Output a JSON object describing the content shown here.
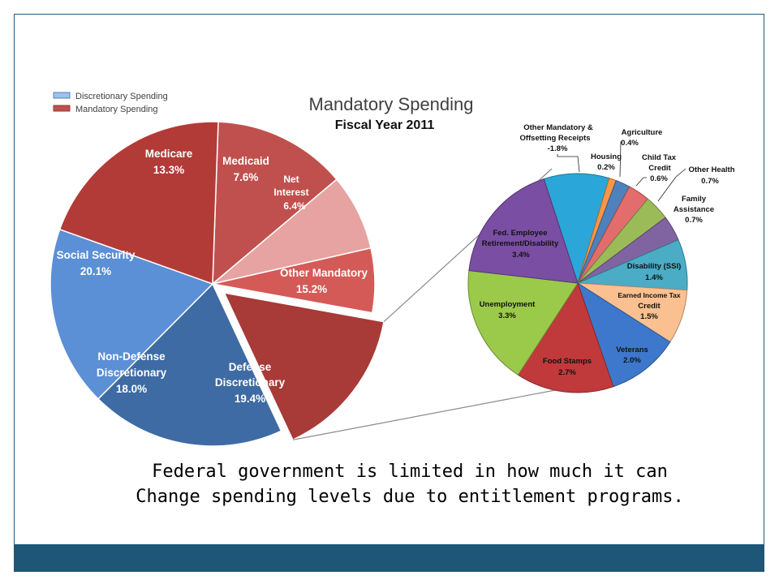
{
  "caption": {
    "line1": "Federal government is limited in how much it can",
    "line2": "Change spending levels due to entitlement programs."
  },
  "colors": {
    "frame": "#1f5a7a",
    "footer_bar": "#1d5677"
  },
  "chart_data": [
    {
      "type": "pie",
      "title": "Mandatory Spending",
      "subtitle": "Fiscal Year 2011",
      "legend_placement": "top-left",
      "legend": [
        {
          "label": "Discretionary Spending",
          "color": "#4f81bd"
        },
        {
          "label": "Mandatory Spending",
          "color": "#c0504d"
        }
      ],
      "slices": [
        {
          "key": "medicare",
          "name": "Medicare",
          "value": 13.3,
          "display": "13.3%",
          "color": "#c0504d",
          "exploded": false
        },
        {
          "key": "medicaid",
          "name": "Medicaid",
          "value": 7.6,
          "display": "7.6%",
          "color": "#e6a3a1",
          "exploded": false
        },
        {
          "key": "net-interest",
          "name": "Net Interest",
          "value": 6.4,
          "display": "6.4%",
          "color": "#d45a57",
          "exploded": false
        },
        {
          "key": "other-mandatory",
          "name": "Other Mandatory",
          "value": 15.2,
          "display": "15.2%",
          "color": "#a83a38",
          "exploded": true
        },
        {
          "key": "defense",
          "name": "Defense Discretionary",
          "value": 19.4,
          "display": "19.4%",
          "color": "#3e6ba3",
          "exploded": false
        },
        {
          "key": "non-defense",
          "name": "Non-Defense Discretionary",
          "value": 18.0,
          "display": "18.0%",
          "color": "#5b8fd6",
          "exploded": false
        },
        {
          "key": "social-security",
          "name": "Social Security",
          "value": 20.1,
          "display": "20.1%",
          "color": "#b23b38",
          "exploded": false
        }
      ]
    },
    {
      "type": "pie",
      "title": "",
      "breakdown_of": "Other Mandatory",
      "slices": [
        {
          "key": "other-mandatory-receipts",
          "name": "Other Mandatory & Offsetting Receipts",
          "value": -1.8,
          "display": "-1.8%",
          "color": "#2aa7d8"
        },
        {
          "key": "housing",
          "name": "Housing",
          "value": 0.2,
          "display": "0.2%",
          "color": "#f79646"
        },
        {
          "key": "agriculture",
          "name": "Agriculture",
          "value": 0.4,
          "display": "0.4%",
          "color": "#4f81bd"
        },
        {
          "key": "child-tax-credit",
          "name": "Child Tax Credit",
          "value": 0.6,
          "display": "0.6%",
          "color": "#e36c6c"
        },
        {
          "key": "other-health",
          "name": "Other Health",
          "value": 0.7,
          "display": "0.7%",
          "color": "#9bbb59"
        },
        {
          "key": "family-assistance",
          "name": "Family Assistance",
          "value": 0.7,
          "display": "0.7%",
          "color": "#8064a2"
        },
        {
          "key": "disability-ssi",
          "name": "Disability (SSI)",
          "value": 1.4,
          "display": "1.4%",
          "color": "#4bacc6"
        },
        {
          "key": "eitc",
          "name": "Earned Income Tax Credit",
          "value": 1.5,
          "display": "1.5%",
          "color": "#fac090"
        },
        {
          "key": "veterans",
          "name": "Veterans",
          "value": 2.0,
          "display": "2.0%",
          "color": "#3d78cc"
        },
        {
          "key": "food-stamps",
          "name": "Food Stamps",
          "value": 2.7,
          "display": "2.7%",
          "color": "#c0393b"
        },
        {
          "key": "unemployment",
          "name": "Unemployment",
          "value": 3.3,
          "display": "3.3%",
          "color": "#9bc94a"
        },
        {
          "key": "fed-employee",
          "name": "Fed. Employee Retirement/Disability",
          "value": 3.4,
          "display": "3.4%",
          "color": "#7a4ea3"
        }
      ]
    }
  ]
}
